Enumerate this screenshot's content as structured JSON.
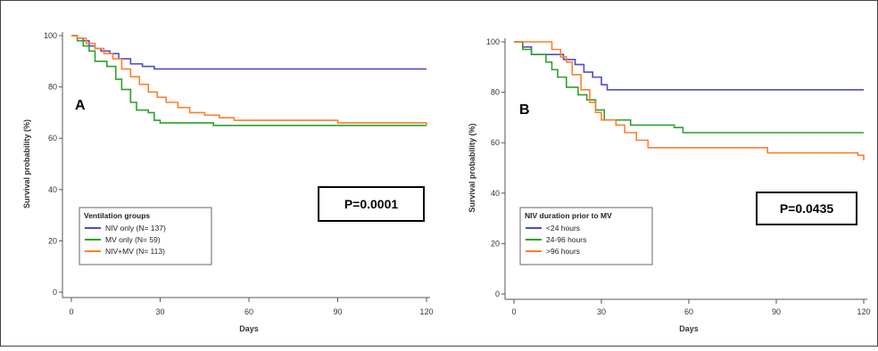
{
  "chart_data": [
    {
      "type": "line",
      "step": true,
      "panel_label": "A",
      "xlabel": "Days",
      "ylabel": "Survival probability (%)",
      "xlim": [
        0,
        120
      ],
      "ylim": [
        0,
        100
      ],
      "xticks": [
        0,
        30,
        60,
        90,
        120
      ],
      "yticks": [
        0,
        20,
        40,
        60,
        80,
        100
      ],
      "grid": false,
      "p_value": "P=0.0001",
      "legend": {
        "title": "Ventilation groups",
        "placement": "bottom-left"
      },
      "series": [
        {
          "name": "NIV only (N= 137)",
          "color": "#4c4cc8",
          "points": [
            [
              0,
              100
            ],
            [
              2,
              99
            ],
            [
              4,
              98
            ],
            [
              6,
              96
            ],
            [
              8,
              95
            ],
            [
              10,
              94
            ],
            [
              13,
              93
            ],
            [
              16,
              91
            ],
            [
              20,
              89
            ],
            [
              24,
              88
            ],
            [
              28,
              87
            ],
            [
              35,
              87
            ],
            [
              120,
              87
            ]
          ]
        },
        {
          "name": "MV only (N= 59)",
          "color": "#2ca02c",
          "points": [
            [
              0,
              100
            ],
            [
              2,
              98
            ],
            [
              4,
              96
            ],
            [
              6,
              94
            ],
            [
              8,
              90
            ],
            [
              12,
              88
            ],
            [
              15,
              83
            ],
            [
              17,
              79
            ],
            [
              20,
              74
            ],
            [
              22,
              71
            ],
            [
              26,
              70
            ],
            [
              28,
              67
            ],
            [
              30,
              66
            ],
            [
              45,
              66
            ],
            [
              48,
              65
            ],
            [
              120,
              65
            ]
          ]
        },
        {
          "name": "NIV+MV (N= 113)",
          "color": "#ff7f2a",
          "points": [
            [
              0,
              100
            ],
            [
              2,
              99
            ],
            [
              5,
              97
            ],
            [
              8,
              95
            ],
            [
              11,
              93
            ],
            [
              14,
              91
            ],
            [
              17,
              87
            ],
            [
              20,
              84
            ],
            [
              23,
              81
            ],
            [
              26,
              78
            ],
            [
              29,
              76
            ],
            [
              32,
              74
            ],
            [
              36,
              72
            ],
            [
              40,
              70
            ],
            [
              45,
              69
            ],
            [
              50,
              68
            ],
            [
              55,
              67
            ],
            [
              60,
              67
            ],
            [
              85,
              67
            ],
            [
              90,
              66
            ],
            [
              118,
              66
            ],
            [
              120,
              65
            ]
          ]
        }
      ]
    },
    {
      "type": "line",
      "step": true,
      "panel_label": "B",
      "xlabel": "Days",
      "ylabel": "Survival probability (%)",
      "xlim": [
        0,
        120
      ],
      "ylim": [
        0,
        100
      ],
      "xticks": [
        0,
        30,
        60,
        90,
        120
      ],
      "yticks": [
        0,
        20,
        40,
        60,
        80,
        100
      ],
      "grid": false,
      "p_value": "P=0.0435",
      "legend": {
        "title": "NIV duration prior to MV",
        "placement": "bottom-left"
      },
      "series": [
        {
          "name": "<24 hours",
          "color": "#4c4cc8",
          "points": [
            [
              0,
              100
            ],
            [
              3,
              98
            ],
            [
              6,
              95
            ],
            [
              14,
              95
            ],
            [
              17,
              93
            ],
            [
              21,
              91
            ],
            [
              24,
              88
            ],
            [
              27,
              86
            ],
            [
              30,
              83
            ],
            [
              32,
              81
            ],
            [
              120,
              81
            ]
          ]
        },
        {
          "name": "24-96 hours",
          "color": "#2ca02c",
          "points": [
            [
              0,
              100
            ],
            [
              3,
              97
            ],
            [
              6,
              95
            ],
            [
              11,
              92
            ],
            [
              13,
              89
            ],
            [
              15,
              86
            ],
            [
              18,
              82
            ],
            [
              22,
              79
            ],
            [
              25,
              77
            ],
            [
              28,
              73
            ],
            [
              31,
              69
            ],
            [
              40,
              67
            ],
            [
              55,
              66
            ],
            [
              58,
              64
            ],
            [
              120,
              64
            ]
          ]
        },
        {
          "name": ">96 hours",
          "color": "#ff7f2a",
          "points": [
            [
              0,
              100
            ],
            [
              12,
              100
            ],
            [
              13,
              97
            ],
            [
              16,
              94
            ],
            [
              18,
              92
            ],
            [
              20,
              87
            ],
            [
              23,
              81
            ],
            [
              26,
              76
            ],
            [
              28,
              72
            ],
            [
              30,
              69
            ],
            [
              35,
              67
            ],
            [
              38,
              64
            ],
            [
              42,
              61
            ],
            [
              46,
              58
            ],
            [
              72,
              58
            ],
            [
              87,
              56
            ],
            [
              118,
              55
            ],
            [
              120,
              53
            ]
          ]
        }
      ]
    }
  ]
}
